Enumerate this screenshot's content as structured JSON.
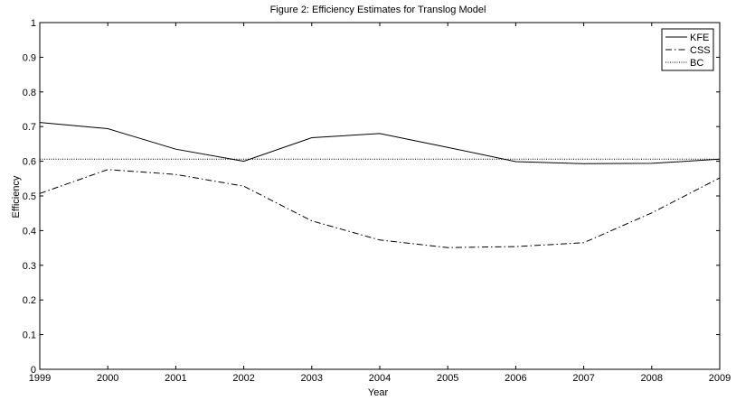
{
  "chart_data": {
    "type": "line",
    "title": "Figure 2: Efficiency Estimates for Translog Model",
    "xlabel": "Year",
    "ylabel": "Efficiency",
    "x": [
      1999,
      2000,
      2001,
      2002,
      2003,
      2004,
      2005,
      2006,
      2007,
      2008,
      2009
    ],
    "xlim": [
      1999,
      2009
    ],
    "ylim": [
      0,
      1
    ],
    "x_ticks": [
      "1999",
      "2000",
      "2001",
      "2002",
      "2003",
      "2004",
      "2005",
      "2006",
      "2007",
      "2008",
      "2009"
    ],
    "y_ticks": [
      "0",
      "0.1",
      "0.2",
      "0.3",
      "0.4",
      "0.5",
      "0.6",
      "0.7",
      "0.8",
      "0.9",
      "1"
    ],
    "grid": false,
    "legend_position": "top-right",
    "series": [
      {
        "name": "KFE",
        "line_style": "solid",
        "values": [
          0.712,
          0.694,
          0.635,
          0.6,
          0.668,
          0.68,
          0.64,
          0.599,
          0.593,
          0.594,
          0.606
        ]
      },
      {
        "name": "CSS",
        "line_style": "dash-dot",
        "values": [
          0.507,
          0.576,
          0.562,
          0.528,
          0.428,
          0.373,
          0.351,
          0.354,
          0.365,
          0.451,
          0.552
        ]
      },
      {
        "name": "BC",
        "line_style": "dotted",
        "values": [
          0.606,
          0.606,
          0.606,
          0.606,
          0.606,
          0.606,
          0.606,
          0.606,
          0.606,
          0.606,
          0.606
        ]
      }
    ]
  }
}
